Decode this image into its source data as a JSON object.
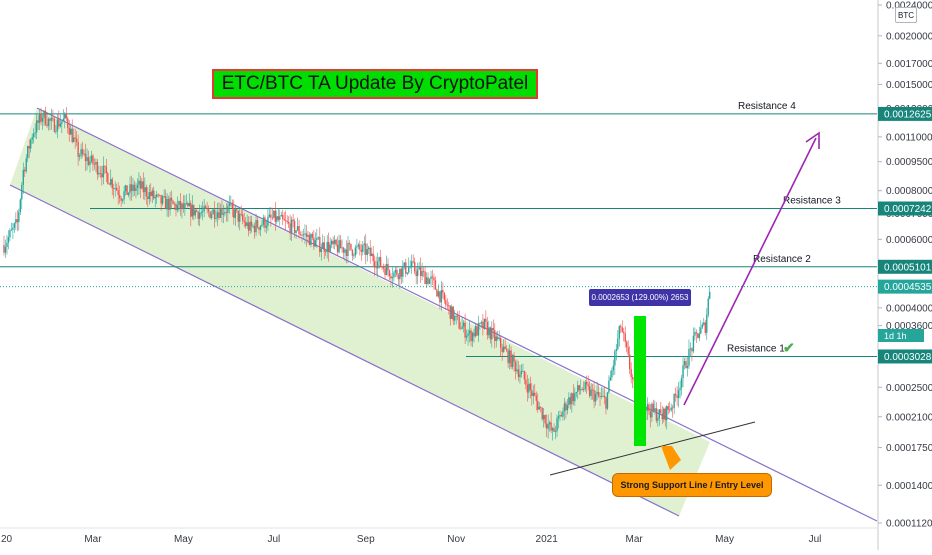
{
  "chart_data": {
    "type": "candlestick",
    "title": "ETC/BTC TA Update By CryptoPatel",
    "currency_badge": "BTC",
    "y_axis": {
      "scale": "log",
      "ylim": [
        0.000112,
        0.0024
      ],
      "tick_labels": [
        "0.0024000",
        "0.0020000",
        "0.0017000",
        "0.0015000",
        "0.0013000",
        "0.0011000",
        "0.0009500",
        "0.0008000",
        "0.0007000",
        "0.0006000",
        "0.0004000",
        "0.0003600",
        "0.0002500",
        "0.0002100",
        "0.0001750",
        "0.0001400",
        "0.0001120"
      ],
      "tick_values": [
        0.0024,
        0.002,
        0.0017,
        0.0015,
        0.0013,
        0.0011,
        0.00095,
        0.0008,
        0.0007,
        0.0006,
        0.0004,
        0.00036,
        0.00025,
        0.00021,
        0.000175,
        0.00014,
        0.000112
      ]
    },
    "x_axis": {
      "tick_labels": [
        "20",
        "Mar",
        "May",
        "Jul",
        "Sep",
        "Nov",
        "2021",
        "Mar",
        "May",
        "Jul"
      ],
      "tick_dates": [
        "2020-01-01",
        "2020-03-01",
        "2020-05-01",
        "2020-07-01",
        "2020-09-01",
        "2020-11-01",
        "2021-01-01",
        "2021-03-01",
        "2021-05-01",
        "2021-07-01"
      ],
      "range": [
        "2020-01-01",
        "2021-09-05"
      ]
    },
    "price_series": [
      [
        "2020-01-01",
        0.00058
      ],
      [
        "2020-01-10",
        0.00066
      ],
      [
        "2020-01-14",
        0.0009
      ],
      [
        "2020-01-20",
        0.00112
      ],
      [
        "2020-01-27",
        0.00125
      ],
      [
        "2020-02-03",
        0.00118
      ],
      [
        "2020-02-12",
        0.00122
      ],
      [
        "2020-02-20",
        0.001
      ],
      [
        "2020-03-01",
        0.00094
      ],
      [
        "2020-03-10",
        0.00088
      ],
      [
        "2020-03-20",
        0.00078
      ],
      [
        "2020-04-01",
        0.00082
      ],
      [
        "2020-04-15",
        0.00075
      ],
      [
        "2020-05-01",
        0.00072
      ],
      [
        "2020-05-15",
        0.0007
      ],
      [
        "2020-06-01",
        0.00072
      ],
      [
        "2020-06-15",
        0.00064
      ],
      [
        "2020-07-01",
        0.00068
      ],
      [
        "2020-07-15",
        0.00064
      ],
      [
        "2020-08-01",
        0.00058
      ],
      [
        "2020-08-15",
        0.00057
      ],
      [
        "2020-09-01",
        0.00056
      ],
      [
        "2020-09-10",
        0.00052
      ],
      [
        "2020-09-20",
        0.00049
      ],
      [
        "2020-10-01",
        0.00051
      ],
      [
        "2020-10-15",
        0.00047
      ],
      [
        "2020-11-01",
        0.00037
      ],
      [
        "2020-11-10",
        0.00034
      ],
      [
        "2020-11-20",
        0.00036
      ],
      [
        "2020-12-01",
        0.00032
      ],
      [
        "2020-12-15",
        0.00027
      ],
      [
        "2020-12-25",
        0.00023
      ],
      [
        "2021-01-05",
        0.00019
      ],
      [
        "2021-01-15",
        0.00023
      ],
      [
        "2021-01-25",
        0.00025
      ],
      [
        "2021-02-01",
        0.00024
      ],
      [
        "2021-02-10",
        0.00023
      ],
      [
        "2021-02-20",
        0.00036
      ],
      [
        "2021-03-01",
        0.00025
      ],
      [
        "2021-03-10",
        0.00022
      ],
      [
        "2021-03-20",
        0.00021
      ],
      [
        "2021-03-28",
        0.00023
      ],
      [
        "2021-04-05",
        0.00029
      ],
      [
        "2021-04-12",
        0.00034
      ],
      [
        "2021-04-18",
        0.00036
      ],
      [
        "2021-04-21",
        0.00045
      ]
    ],
    "current_price": {
      "label": "0.0004535",
      "value": 0.0004535,
      "countdown": "1d 1h"
    },
    "resistance_levels": [
      {
        "name": "Resistance 1",
        "value": 0.0003,
        "tag": "0.0003028",
        "check": "✔"
      },
      {
        "name": "Resistance 2",
        "value": 0.00051,
        "tag": "0.0005101"
      },
      {
        "name": "Resistance 3",
        "value": 0.00072,
        "tag": "0.0007242"
      },
      {
        "name": "Resistance 4",
        "value": 0.00126,
        "tag": "0.0012625"
      }
    ],
    "measure_label": "0.0002653 (129.00%) 2653",
    "callout_text": "Strong Support Line / Entry Level",
    "colors": {
      "up": "#26a69a",
      "down": "#ef5350",
      "channel_fill": "#d5ecc2",
      "channel_line": "#7b61c9",
      "resistance_line": "#17857a",
      "arrow": "#9c27b0",
      "green_bar": "#00e600",
      "title_bg": "#00dd00",
      "title_border": "#e53935",
      "callout_bg": "#ff9800",
      "measure_bg": "#3f33a8"
    }
  }
}
